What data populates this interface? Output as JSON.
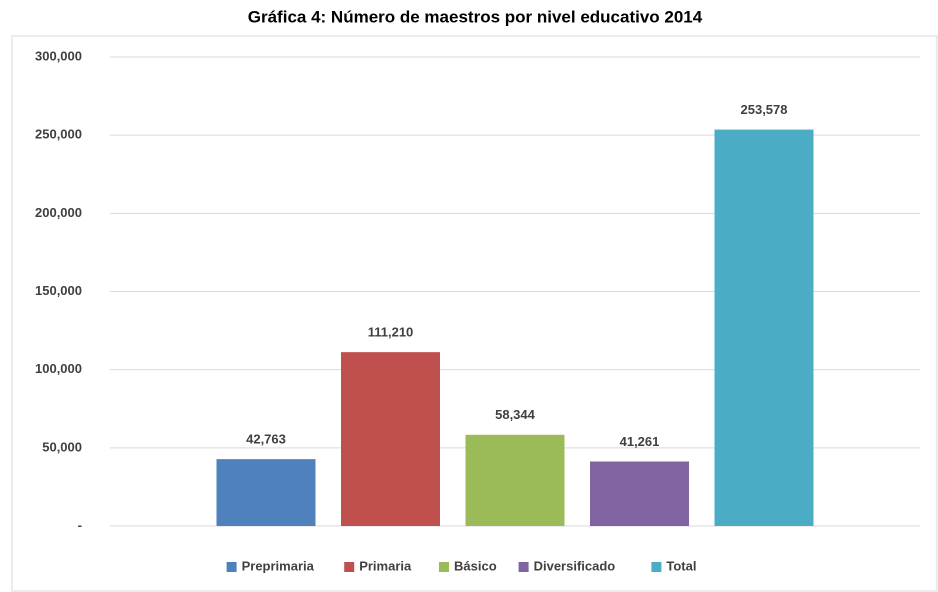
{
  "chart_data": {
    "type": "bar",
    "title": "Gráfica 4: Número de maestros por nivel educativo 2014",
    "categories": [
      null
    ],
    "series": [
      {
        "name": "Preprimaria",
        "color": "#4f81bd",
        "values": [
          42763
        ],
        "value_labels": [
          "42,763"
        ]
      },
      {
        "name": "Primaria",
        "color": "#c0504d",
        "values": [
          111210
        ],
        "value_labels": [
          "111,210"
        ]
      },
      {
        "name": "Básico",
        "color": "#9bbb59",
        "values": [
          58344
        ],
        "value_labels": [
          "58,344"
        ]
      },
      {
        "name": "Diversificado",
        "color": "#8064a2",
        "values": [
          41261
        ],
        "value_labels": [
          "41,261"
        ]
      },
      {
        "name": "Total",
        "color": "#4bacc6",
        "values": [
          253578
        ],
        "value_labels": [
          "253,578"
        ]
      }
    ],
    "ylim": [
      0,
      300000
    ],
    "yticks": [
      {
        "value": 0,
        "label": "-"
      },
      {
        "value": 50000,
        "label": "50,000"
      },
      {
        "value": 100000,
        "label": "100,000"
      },
      {
        "value": 150000,
        "label": "150,000"
      },
      {
        "value": 200000,
        "label": "200,000"
      },
      {
        "value": 250000,
        "label": "250,000"
      },
      {
        "value": 300000,
        "label": "300,000"
      }
    ],
    "grid": true,
    "legend": "bottom"
  }
}
